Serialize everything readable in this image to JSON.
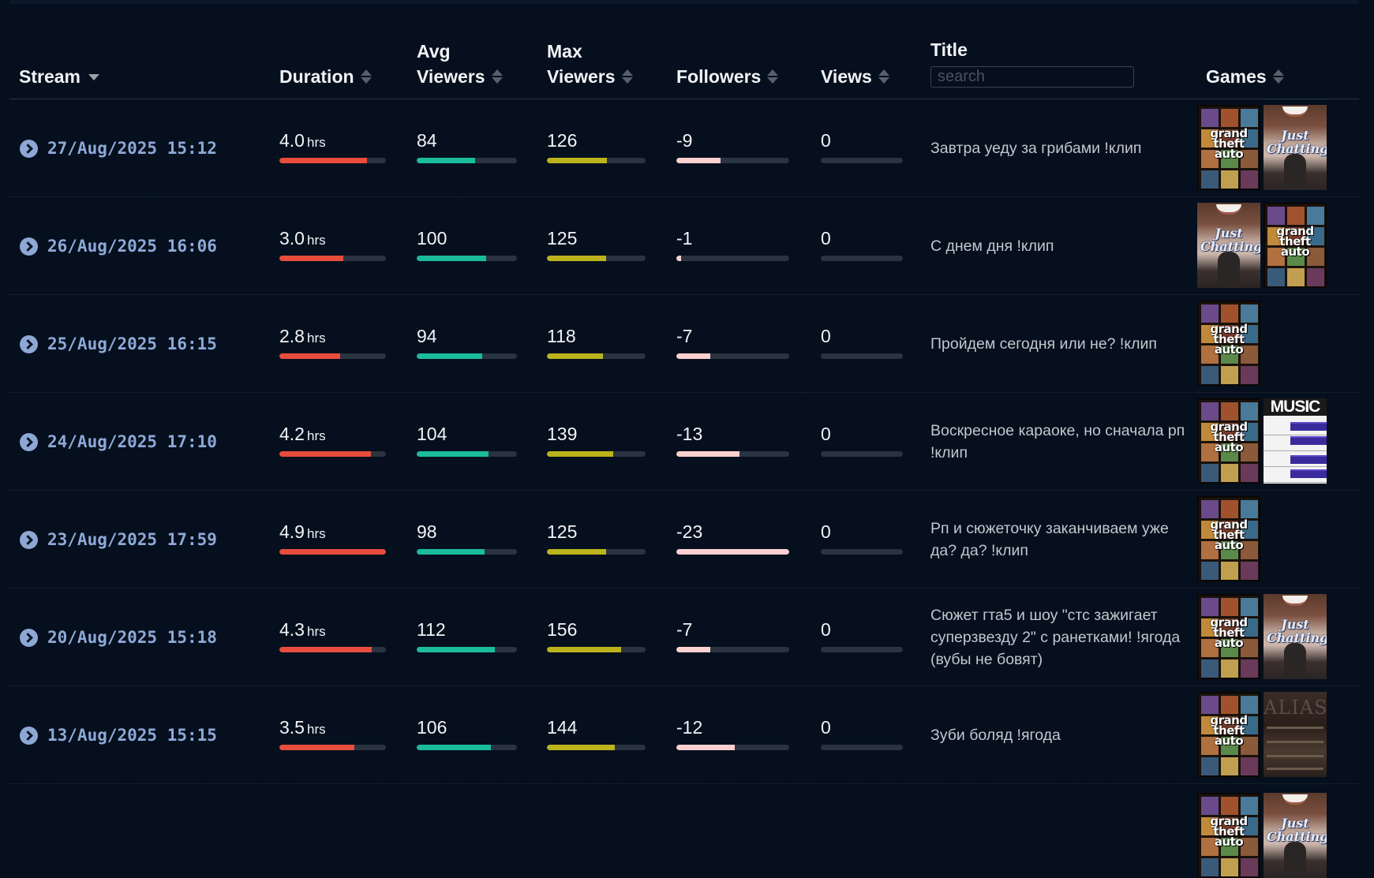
{
  "header": {
    "columns": {
      "stream": "Stream",
      "duration": "Duration",
      "avg_viewers_line1": "Avg",
      "avg_viewers_line2": "Viewers",
      "max_viewers_line1": "Max",
      "max_viewers_line2": "Viewers",
      "followers": "Followers",
      "views": "Views",
      "title": "Title",
      "games": "Games"
    },
    "search_placeholder": "search",
    "sort_state": {
      "stream": "descending"
    }
  },
  "duration_unit": "hrs",
  "colors": {
    "duration_bar": "#e84c3d",
    "avg_viewers_bar": "#1abc9c",
    "max_viewers_bar": "#bcb31c",
    "followers_bar": "#fdd0d0",
    "bar_track": "#2a3340",
    "date_text": "#8ea9d8"
  },
  "rows": [
    {
      "date": "27/Aug/2025 15:12",
      "duration": "4.0",
      "duration_fill_pct": 82,
      "avg_viewers": "84",
      "avg_fill_pct": 58,
      "max_viewers": "126",
      "max_fill_pct": 61,
      "followers": "-9",
      "followers_fill_pct": 39,
      "views": "0",
      "views_fill_pct": 0,
      "title": "Завтра уеду за грибами !клип",
      "games": [
        "Grand Theft Auto V",
        "Just Chatting"
      ]
    },
    {
      "date": "26/Aug/2025 16:06",
      "duration": "3.0",
      "duration_fill_pct": 60,
      "avg_viewers": "100",
      "avg_fill_pct": 69,
      "max_viewers": "125",
      "max_fill_pct": 60,
      "followers": "-1",
      "followers_fill_pct": 4,
      "views": "0",
      "views_fill_pct": 0,
      "title": "С днем дня !клип",
      "games": [
        "Just Chatting",
        "Grand Theft Auto V"
      ]
    },
    {
      "date": "25/Aug/2025 16:15",
      "duration": "2.8",
      "duration_fill_pct": 57,
      "avg_viewers": "94",
      "avg_fill_pct": 65,
      "max_viewers": "118",
      "max_fill_pct": 57,
      "followers": "-7",
      "followers_fill_pct": 30,
      "views": "0",
      "views_fill_pct": 0,
      "title": "Пройдем сегодня или не? !клип",
      "games": [
        "Grand Theft Auto V"
      ]
    },
    {
      "date": "24/Aug/2025 17:10",
      "duration": "4.2",
      "duration_fill_pct": 86,
      "avg_viewers": "104",
      "avg_fill_pct": 72,
      "max_viewers": "139",
      "max_fill_pct": 67,
      "followers": "-13",
      "followers_fill_pct": 56,
      "views": "0",
      "views_fill_pct": 0,
      "title": "Воскресное караоке, но сначала рп !клип",
      "games": [
        "Grand Theft Auto V",
        "Music"
      ]
    },
    {
      "date": "23/Aug/2025 17:59",
      "duration": "4.9",
      "duration_fill_pct": 100,
      "avg_viewers": "98",
      "avg_fill_pct": 68,
      "max_viewers": "125",
      "max_fill_pct": 60,
      "followers": "-23",
      "followers_fill_pct": 100,
      "views": "0",
      "views_fill_pct": 0,
      "title": "Рп и сюжеточку заканчиваем уже да? да? !клип",
      "games": [
        "Grand Theft Auto V"
      ]
    },
    {
      "date": "20/Aug/2025 15:18",
      "duration": "4.3",
      "duration_fill_pct": 87,
      "avg_viewers": "112",
      "avg_fill_pct": 78,
      "max_viewers": "156",
      "max_fill_pct": 75,
      "followers": "-7",
      "followers_fill_pct": 30,
      "views": "0",
      "views_fill_pct": 0,
      "title": "Сюжет гта5 и шоу \"стс зажигает суперзвезду 2\" с ранетками! !ягода (вубы не бовят)",
      "games": [
        "Grand Theft Auto V",
        "Just Chatting"
      ]
    },
    {
      "date": "13/Aug/2025 15:15",
      "duration": "3.5",
      "duration_fill_pct": 70,
      "avg_viewers": "106",
      "avg_fill_pct": 74,
      "max_viewers": "144",
      "max_fill_pct": 69,
      "followers": "-12",
      "followers_fill_pct": 52,
      "views": "0",
      "views_fill_pct": 0,
      "title": "Зуби боляд !ягода",
      "games": [
        "Grand Theft Auto V",
        "Alias"
      ]
    }
  ],
  "partial_row": {
    "games": [
      "Grand Theft Auto V",
      "Just Chatting"
    ]
  },
  "game_art_text": {
    "gta": "grand theft auto",
    "chat": "Just Chatting",
    "music": "MUSIC",
    "alias": "ALIAS"
  }
}
